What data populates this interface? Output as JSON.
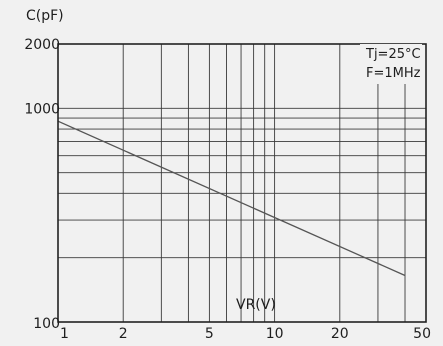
{
  "chart_data": {
    "type": "line",
    "ylabel": "C(pF)",
    "xlabel": "VR(V)",
    "x_scale": "log",
    "y_scale": "log",
    "xlim": [
      1,
      50
    ],
    "ylim": [
      100,
      2000
    ],
    "x_ticks": [
      1,
      2,
      5,
      10,
      20,
      50
    ],
    "x_tick_labels": [
      "1",
      "2",
      "5",
      "10",
      "20",
      "50"
    ],
    "y_ticks": [
      100,
      1000,
      2000
    ],
    "y_tick_labels": [
      "100",
      "1000",
      "2000"
    ],
    "x_gridlines": [
      1,
      2,
      3,
      4,
      5,
      6,
      7,
      8,
      9,
      10,
      20,
      30,
      40,
      50
    ],
    "y_gridlines": [
      100,
      200,
      300,
      400,
      500,
      600,
      700,
      800,
      900,
      1000,
      2000
    ],
    "grid": true,
    "annotations": [
      "Tj=25°C",
      "F=1MHz"
    ],
    "annotation_position": "top-right",
    "series": [
      {
        "x": [
          1,
          40
        ],
        "y": [
          870,
          165
        ],
        "color": "#555555"
      }
    ]
  }
}
